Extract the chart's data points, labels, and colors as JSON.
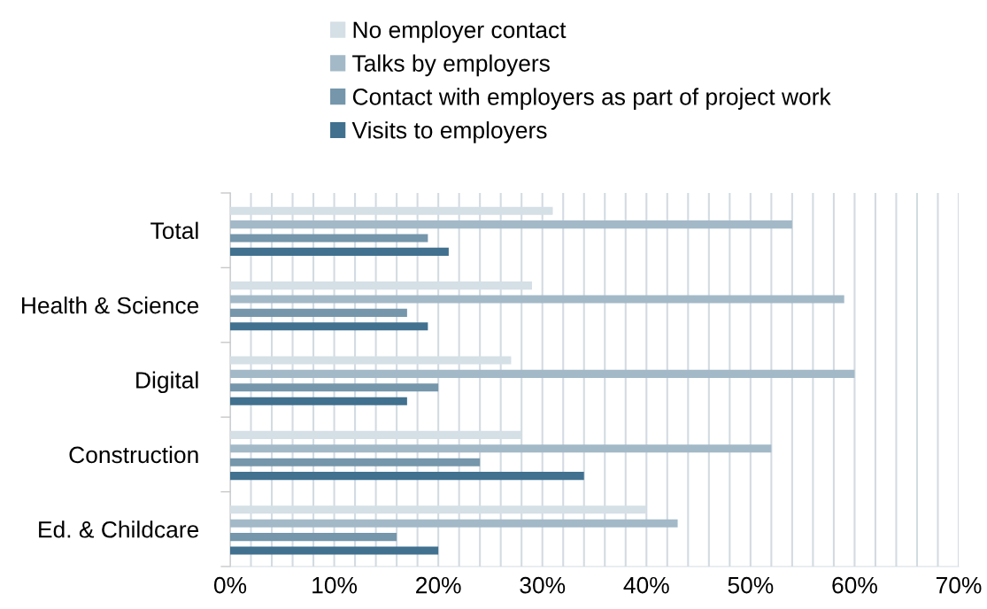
{
  "chart_data": {
    "type": "bar",
    "orientation": "horizontal",
    "categories": [
      "Total",
      "Health & Science",
      "Digital",
      "Construction",
      "Ed. & Childcare"
    ],
    "series": [
      {
        "name": "No employer contact",
        "color": "#d5dfe6",
        "values": [
          31,
          29,
          27,
          28,
          40
        ]
      },
      {
        "name": "Talks by employers",
        "color": "#a3b9c8",
        "values": [
          54,
          59,
          60,
          52,
          43
        ]
      },
      {
        "name": "Contact with employers as part of project work",
        "color": "#7596ab",
        "values": [
          19,
          17,
          20,
          24,
          16
        ]
      },
      {
        "name": "Visits to employers",
        "color": "#41718f",
        "values": [
          21,
          19,
          17,
          34,
          20
        ]
      }
    ],
    "xlim": [
      0,
      70
    ],
    "xticks": [
      {
        "value": 0,
        "label": "0%"
      },
      {
        "value": 2,
        "label": null
      },
      {
        "value": 4,
        "label": null
      },
      {
        "value": 6,
        "label": null
      },
      {
        "value": 8,
        "label": null
      },
      {
        "value": 10,
        "label": "10%"
      },
      {
        "value": 12,
        "label": null
      },
      {
        "value": 14,
        "label": null
      },
      {
        "value": 16,
        "label": null
      },
      {
        "value": 18,
        "label": null
      },
      {
        "value": 20,
        "label": "20%"
      },
      {
        "value": 22,
        "label": null
      },
      {
        "value": 24,
        "label": null
      },
      {
        "value": 26,
        "label": null
      },
      {
        "value": 28,
        "label": null
      },
      {
        "value": 30,
        "label": "30%"
      },
      {
        "value": 32,
        "label": null
      },
      {
        "value": 34,
        "label": null
      },
      {
        "value": 36,
        "label": null
      },
      {
        "value": 38,
        "label": null
      },
      {
        "value": 40,
        "label": "40%"
      },
      {
        "value": 42,
        "label": null
      },
      {
        "value": 44,
        "label": null
      },
      {
        "value": 46,
        "label": null
      },
      {
        "value": 48,
        "label": null
      },
      {
        "value": 50,
        "label": "50%"
      },
      {
        "value": 52,
        "label": null
      },
      {
        "value": 54,
        "label": null
      },
      {
        "value": 56,
        "label": null
      },
      {
        "value": 58,
        "label": null
      },
      {
        "value": 60,
        "label": "60%"
      },
      {
        "value": 62,
        "label": null
      },
      {
        "value": 64,
        "label": null
      },
      {
        "value": 66,
        "label": null
      },
      {
        "value": 68,
        "label": null
      },
      {
        "value": 70,
        "label": "70%"
      }
    ],
    "grid": "x",
    "legend": "top"
  }
}
